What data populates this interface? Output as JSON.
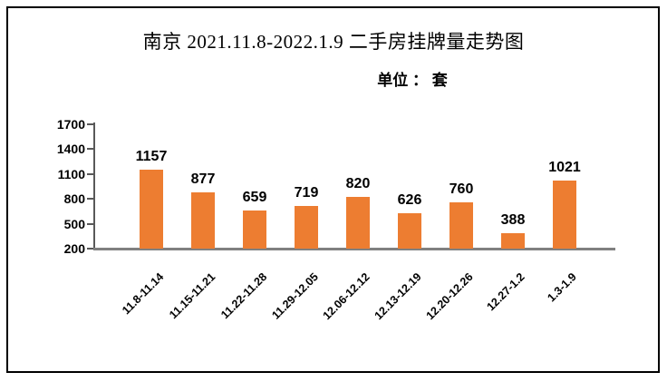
{
  "chart_data": {
    "type": "bar",
    "title": "南京 2021.11.8-2022.1.9 二手房挂牌量走势图",
    "unit_label": "单位 ： 套",
    "categories": [
      "11.8-11.14",
      "11.15-11.21",
      "11.22-11.28",
      "11.29-12.05",
      "12.06-12.12",
      "12.13-12.19",
      "12.20-12.26",
      "12.27-1.2",
      "1.3-1.9"
    ],
    "values": [
      1157,
      877,
      659,
      719,
      820,
      626,
      760,
      388,
      1021
    ],
    "y_ticks": [
      200,
      500,
      800,
      1100,
      1400,
      1700
    ],
    "ylim": [
      200,
      1700
    ],
    "xlabel": "",
    "ylabel": "",
    "legend": "none",
    "grid": false,
    "data_labels": true,
    "colors": {
      "bar": "#ED7D31",
      "y_axis": "#595959",
      "x_axis": "#808080",
      "text": "#000000",
      "frame_border": "#000000"
    }
  }
}
